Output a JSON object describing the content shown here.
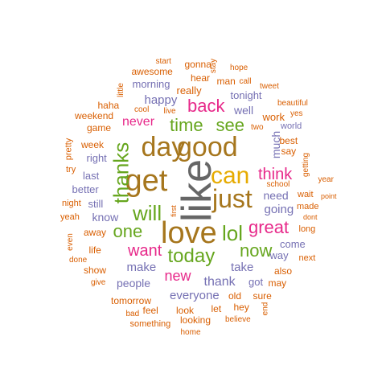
{
  "palette": {
    "brown": "#A6761D",
    "gray": "#666666",
    "orange": "#D95F02",
    "purple": "#7570B3",
    "pink": "#E7298A",
    "green": "#66A61E",
    "gold": "#E6AB02"
  },
  "words": [
    {
      "text": "like",
      "color": "gray",
      "rotated": true
    },
    {
      "text": "good",
      "color": "brown"
    },
    {
      "text": "day",
      "color": "brown"
    },
    {
      "text": "get",
      "color": "brown"
    },
    {
      "text": "can",
      "color": "gold"
    },
    {
      "text": "just",
      "color": "brown"
    },
    {
      "text": "love",
      "color": "brown"
    },
    {
      "text": "thanks",
      "color": "green",
      "rotated": true
    },
    {
      "text": "will",
      "color": "green"
    },
    {
      "text": "lol",
      "color": "green"
    },
    {
      "text": "great",
      "color": "pink"
    },
    {
      "text": "one",
      "color": "green"
    },
    {
      "text": "today",
      "color": "green"
    },
    {
      "text": "now",
      "color": "green"
    },
    {
      "text": "want",
      "color": "pink"
    },
    {
      "text": "back",
      "color": "pink"
    },
    {
      "text": "time",
      "color": "green"
    },
    {
      "text": "see",
      "color": "green"
    },
    {
      "text": "think",
      "color": "pink"
    },
    {
      "text": "new",
      "color": "pink"
    },
    {
      "text": "happy",
      "color": "purple"
    },
    {
      "text": "never",
      "color": "pink"
    },
    {
      "text": "much",
      "color": "purple",
      "rotated": true
    },
    {
      "text": "going",
      "color": "purple"
    },
    {
      "text": "need",
      "color": "purple"
    },
    {
      "text": "know",
      "color": "purple"
    },
    {
      "text": "make",
      "color": "purple"
    },
    {
      "text": "take",
      "color": "purple"
    },
    {
      "text": "thank",
      "color": "purple"
    },
    {
      "text": "people",
      "color": "purple"
    },
    {
      "text": "everyone",
      "color": "purple"
    },
    {
      "text": "really",
      "color": "orange"
    },
    {
      "text": "morning",
      "color": "purple"
    },
    {
      "text": "tonight",
      "color": "purple"
    },
    {
      "text": "well",
      "color": "purple"
    },
    {
      "text": "awesome",
      "color": "orange"
    },
    {
      "text": "gonna",
      "color": "orange"
    },
    {
      "text": "start",
      "color": "orange"
    },
    {
      "text": "hope",
      "color": "orange"
    },
    {
      "text": "stay",
      "color": "orange",
      "rotated": true
    },
    {
      "text": "hear",
      "color": "orange"
    },
    {
      "text": "man",
      "color": "orange"
    },
    {
      "text": "call",
      "color": "orange"
    },
    {
      "text": "tweet",
      "color": "orange"
    },
    {
      "text": "little",
      "color": "orange",
      "rotated": true
    },
    {
      "text": "haha",
      "color": "orange"
    },
    {
      "text": "cool",
      "color": "orange"
    },
    {
      "text": "live",
      "color": "orange"
    },
    {
      "text": "weekend",
      "color": "orange"
    },
    {
      "text": "game",
      "color": "orange"
    },
    {
      "text": "two",
      "color": "orange"
    },
    {
      "text": "work",
      "color": "orange"
    },
    {
      "text": "yes",
      "color": "orange"
    },
    {
      "text": "beautiful",
      "color": "orange"
    },
    {
      "text": "world",
      "color": "purple"
    },
    {
      "text": "pretty",
      "color": "orange",
      "rotated": true
    },
    {
      "text": "week",
      "color": "orange"
    },
    {
      "text": "right",
      "color": "purple"
    },
    {
      "text": "best",
      "color": "orange"
    },
    {
      "text": "say",
      "color": "orange"
    },
    {
      "text": "getting",
      "color": "orange",
      "rotated": true
    },
    {
      "text": "try",
      "color": "orange"
    },
    {
      "text": "last",
      "color": "purple"
    },
    {
      "text": "year",
      "color": "orange"
    },
    {
      "text": "school",
      "color": "orange"
    },
    {
      "text": "better",
      "color": "purple"
    },
    {
      "text": "still",
      "color": "purple"
    },
    {
      "text": "wait",
      "color": "orange"
    },
    {
      "text": "point",
      "color": "orange"
    },
    {
      "text": "night",
      "color": "orange"
    },
    {
      "text": "first",
      "color": "orange",
      "rotated": true
    },
    {
      "text": "made",
      "color": "orange"
    },
    {
      "text": "yeah",
      "color": "orange"
    },
    {
      "text": "dont",
      "color": "orange"
    },
    {
      "text": "away",
      "color": "orange"
    },
    {
      "text": "long",
      "color": "orange"
    },
    {
      "text": "even",
      "color": "orange",
      "rotated": true
    },
    {
      "text": "come",
      "color": "purple"
    },
    {
      "text": "life",
      "color": "orange"
    },
    {
      "text": "way",
      "color": "purple"
    },
    {
      "text": "done",
      "color": "orange"
    },
    {
      "text": "next",
      "color": "orange"
    },
    {
      "text": "show",
      "color": "orange"
    },
    {
      "text": "also",
      "color": "orange"
    },
    {
      "text": "give",
      "color": "orange"
    },
    {
      "text": "got",
      "color": "purple"
    },
    {
      "text": "may",
      "color": "orange"
    },
    {
      "text": "old",
      "color": "orange"
    },
    {
      "text": "sure",
      "color": "orange"
    },
    {
      "text": "tomorrow",
      "color": "orange"
    },
    {
      "text": "hey",
      "color": "orange"
    },
    {
      "text": "feel",
      "color": "orange"
    },
    {
      "text": "look",
      "color": "orange"
    },
    {
      "text": "let",
      "color": "orange"
    },
    {
      "text": "end",
      "color": "orange",
      "rotated": true
    },
    {
      "text": "bad",
      "color": "orange"
    },
    {
      "text": "looking",
      "color": "orange"
    },
    {
      "text": "believe",
      "color": "orange"
    },
    {
      "text": "something",
      "color": "orange"
    },
    {
      "text": "home",
      "color": "orange"
    }
  ]
}
